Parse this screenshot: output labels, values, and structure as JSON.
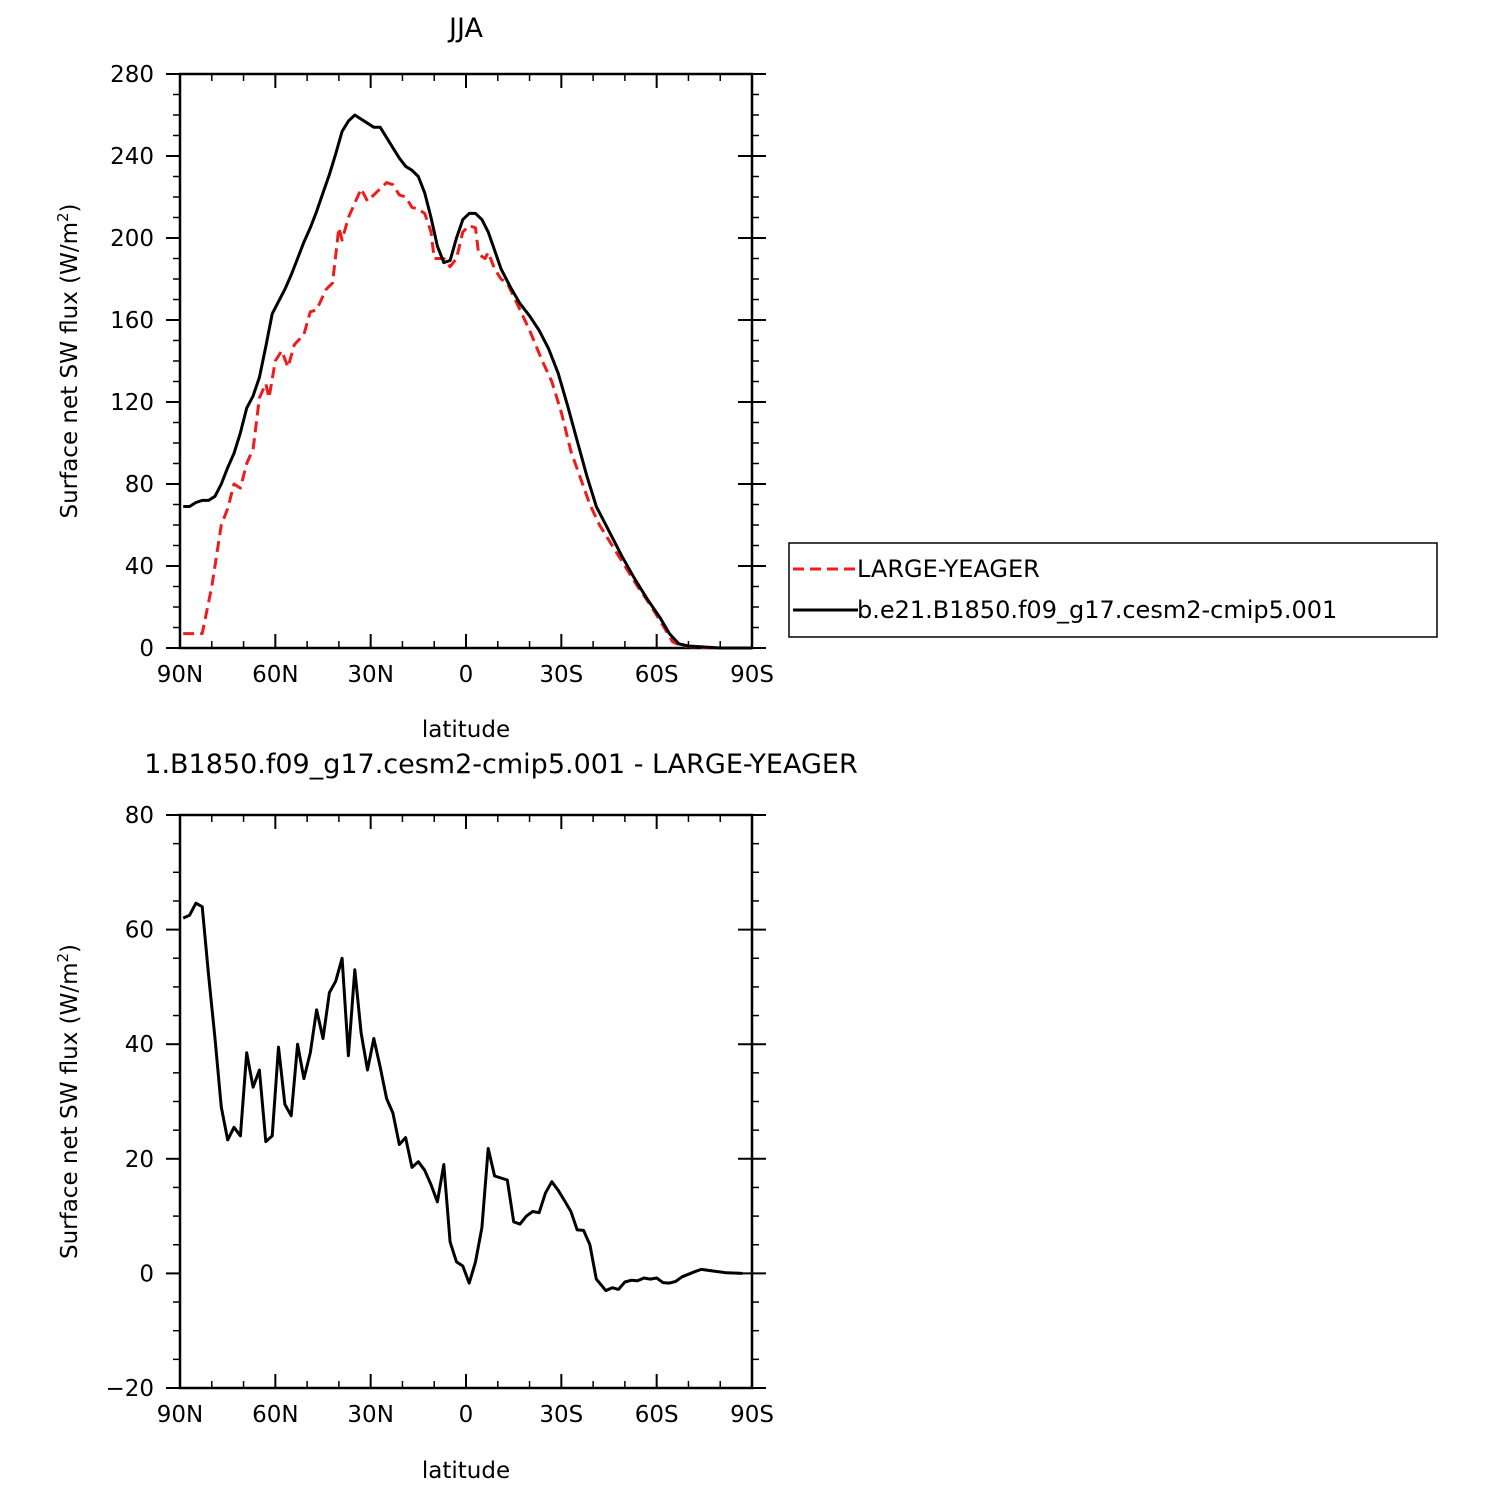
{
  "chart_data": [
    {
      "type": "line",
      "title": "JJA",
      "xlabel": "latitude",
      "ylabel": "Surface net SW flux (W/m²)",
      "xlim": [
        90,
        -90
      ],
      "ylim": [
        0,
        280
      ],
      "xticks": [
        90,
        60,
        30,
        0,
        -30,
        -60,
        -90
      ],
      "xtick_labels": [
        "90N",
        "60N",
        "30N",
        "0",
        "30S",
        "60S",
        "90S"
      ],
      "yticks": [
        0,
        40,
        80,
        120,
        160,
        200,
        240,
        280
      ],
      "ytick_labels": [
        "0",
        "40",
        "80",
        "120",
        "160",
        "200",
        "240",
        "280"
      ],
      "legend_position": "right",
      "series": [
        {
          "name": "LARGE-YEAGER",
          "color": "#ee1c1c",
          "style": "dashed",
          "points": [
            [
              89,
              7
            ],
            [
              86,
              7
            ],
            [
              83,
              7
            ],
            [
              80,
              30
            ],
            [
              77,
              60
            ],
            [
              75,
              68
            ],
            [
              73,
              80
            ],
            [
              71,
              78
            ],
            [
              69,
              90
            ],
            [
              67,
              97
            ],
            [
              65,
              122
            ],
            [
              63,
              129
            ],
            [
              62,
              122
            ],
            [
              60,
              140
            ],
            [
              58,
              145
            ],
            [
              56,
              137
            ],
            [
              54,
              148
            ],
            [
              51,
              153
            ],
            [
              49,
              164
            ],
            [
              47,
              165
            ],
            [
              44,
              175
            ],
            [
              42,
              178
            ],
            [
              40,
              205
            ],
            [
              39,
              199
            ],
            [
              37,
              210
            ],
            [
              35,
              217
            ],
            [
              33,
              224
            ],
            [
              31,
              218
            ],
            [
              29,
              221
            ],
            [
              27,
              224
            ],
            [
              25,
              227
            ],
            [
              23,
              226
            ],
            [
              21,
              221
            ],
            [
              19,
              220
            ],
            [
              17,
              215
            ],
            [
              15,
              214
            ],
            [
              13,
              212
            ],
            [
              11,
              203
            ],
            [
              10,
              190
            ],
            [
              7,
              190
            ],
            [
              5,
              186
            ],
            [
              3,
              190
            ],
            [
              1,
              203
            ],
            [
              -1,
              206
            ],
            [
              -3,
              205
            ],
            [
              -4,
              192
            ],
            [
              -6,
              190
            ],
            [
              -7,
              193
            ],
            [
              -9,
              185
            ],
            [
              -11,
              180
            ],
            [
              -13,
              178
            ],
            [
              -17,
              165
            ],
            [
              -20,
              155
            ],
            [
              -24,
              140
            ],
            [
              -27,
              130
            ],
            [
              -30,
              115
            ],
            [
              -33,
              96
            ],
            [
              -36,
              83
            ],
            [
              -39,
              70
            ],
            [
              -42,
              60
            ],
            [
              -46,
              50
            ],
            [
              -50,
              40
            ],
            [
              -54,
              30
            ],
            [
              -58,
              21
            ],
            [
              -62,
              11
            ],
            [
              -65,
              3
            ],
            [
              -68,
              1
            ],
            [
              -72,
              0.5
            ],
            [
              -78,
              0
            ],
            [
              -86,
              0
            ],
            [
              -90,
              0
            ]
          ]
        },
        {
          "name": "b.e21.B1850.f09_g17.cesm2-cmip5.001",
          "color": "#000000",
          "style": "solid",
          "points": [
            [
              89,
              69
            ],
            [
              87,
              69
            ],
            [
              85,
              71
            ],
            [
              83,
              72
            ],
            [
              81,
              72
            ],
            [
              79,
              74
            ],
            [
              77,
              80
            ],
            [
              75,
              88
            ],
            [
              73,
              95
            ],
            [
              71,
              105
            ],
            [
              69,
              117
            ],
            [
              67,
              123
            ],
            [
              65,
              132
            ],
            [
              63,
              147
            ],
            [
              61,
              163
            ],
            [
              59,
              169
            ],
            [
              57,
              175
            ],
            [
              55,
              182
            ],
            [
              53,
              190
            ],
            [
              51,
              198
            ],
            [
              49,
              205
            ],
            [
              47,
              213
            ],
            [
              45,
              222
            ],
            [
              43,
              231
            ],
            [
              41,
              241
            ],
            [
              39,
              252
            ],
            [
              37,
              257
            ],
            [
              35,
              260
            ],
            [
              33,
              258
            ],
            [
              31,
              256
            ],
            [
              29,
              254
            ],
            [
              27,
              254
            ],
            [
              25,
              249
            ],
            [
              23,
              244
            ],
            [
              21,
              239
            ],
            [
              19,
              235
            ],
            [
              17,
              233
            ],
            [
              15,
              230
            ],
            [
              13,
              222
            ],
            [
              11,
              210
            ],
            [
              9,
              196
            ],
            [
              7,
              188
            ],
            [
              5,
              189
            ],
            [
              3,
              200
            ],
            [
              1,
              209
            ],
            [
              -1,
              212
            ],
            [
              -3,
              212
            ],
            [
              -5,
              209
            ],
            [
              -7,
              203
            ],
            [
              -9,
              194
            ],
            [
              -11,
              185
            ],
            [
              -14,
              176
            ],
            [
              -17,
              168
            ],
            [
              -20,
              162
            ],
            [
              -23,
              155
            ],
            [
              -26,
              146
            ],
            [
              -29,
              134
            ],
            [
              -32,
              118
            ],
            [
              -35,
              101
            ],
            [
              -38,
              84
            ],
            [
              -41,
              69
            ],
            [
              -45,
              57
            ],
            [
              -49,
              45
            ],
            [
              -53,
              34
            ],
            [
              -57,
              24
            ],
            [
              -61,
              15
            ],
            [
              -64,
              7
            ],
            [
              -67,
              2
            ],
            [
              -70,
              1
            ],
            [
              -75,
              0.5
            ],
            [
              -80,
              0
            ],
            [
              -90,
              0
            ]
          ]
        }
      ]
    },
    {
      "type": "line",
      "title": "1.B1850.f09_g17.cesm2-cmip5.001 - LARGE-YEAGER",
      "xlabel": "latitude",
      "ylabel": "Surface net SW flux (W/m²)",
      "xlim": [
        90,
        -90
      ],
      "ylim": [
        -20,
        80
      ],
      "xticks": [
        90,
        60,
        30,
        0,
        -30,
        -60,
        -90
      ],
      "xtick_labels": [
        "90N",
        "60N",
        "30N",
        "0",
        "30S",
        "60S",
        "90S"
      ],
      "yticks": [
        -20,
        0,
        20,
        40,
        60,
        80
      ],
      "ytick_labels": [
        "−20",
        "0",
        "20",
        "40",
        "60",
        "80"
      ],
      "series": [
        {
          "color": "#000000",
          "style": "solid",
          "points": [
            [
              89,
              62
            ],
            [
              87,
              62.5
            ],
            [
              85,
              64.6
            ],
            [
              83,
              64
            ],
            [
              81,
              52
            ],
            [
              79,
              41
            ],
            [
              77,
              29
            ],
            [
              75,
              23.3
            ],
            [
              73,
              25.5
            ],
            [
              71,
              24
            ],
            [
              69,
              38.5
            ],
            [
              67,
              32.5
            ],
            [
              65,
              35.5
            ],
            [
              63,
              23
            ],
            [
              61,
              24
            ],
            [
              59,
              39.5
            ],
            [
              57,
              29.5
            ],
            [
              55,
              27.5
            ],
            [
              53,
              40
            ],
            [
              51,
              34
            ],
            [
              49,
              38.5
            ],
            [
              47,
              46
            ],
            [
              45,
              41
            ],
            [
              43,
              49
            ],
            [
              41,
              51
            ],
            [
              39,
              55
            ],
            [
              37,
              38
            ],
            [
              35,
              53
            ],
            [
              33,
              42
            ],
            [
              31,
              35.5
            ],
            [
              29,
              41
            ],
            [
              27,
              36
            ],
            [
              25,
              30.5
            ],
            [
              23,
              28
            ],
            [
              21,
              22.5
            ],
            [
              19,
              23.7
            ],
            [
              17,
              18.5
            ],
            [
              15,
              19.5
            ],
            [
              13,
              18
            ],
            [
              11,
              15.5
            ],
            [
              9,
              12.5
            ],
            [
              7,
              19
            ],
            [
              5,
              5.5
            ],
            [
              3,
              2
            ],
            [
              1,
              1.3
            ],
            [
              -1,
              -1.7
            ],
            [
              -3,
              2
            ],
            [
              -5,
              8
            ],
            [
              -7,
              21.8
            ],
            [
              -9,
              17
            ],
            [
              -13,
              16.3
            ],
            [
              -15,
              9
            ],
            [
              -17,
              8.6
            ],
            [
              -19,
              10
            ],
            [
              -21,
              10.8
            ],
            [
              -23,
              10.6
            ],
            [
              -25,
              14
            ],
            [
              -27,
              16
            ],
            [
              -29,
              14.5
            ],
            [
              -31,
              12.7
            ],
            [
              -33,
              10.8
            ],
            [
              -35,
              7.6
            ],
            [
              -37,
              7.5
            ],
            [
              -39,
              5
            ],
            [
              -41,
              -1
            ],
            [
              -44,
              -3
            ],
            [
              -46,
              -2.5
            ],
            [
              -48,
              -2.8
            ],
            [
              -50,
              -1.5
            ],
            [
              -52,
              -1.2
            ],
            [
              -54,
              -1.3
            ],
            [
              -56,
              -0.8
            ],
            [
              -58,
              -1
            ],
            [
              -60,
              -0.8
            ],
            [
              -62,
              -1.6
            ],
            [
              -64,
              -1.7
            ],
            [
              -66,
              -1.4
            ],
            [
              -68,
              -0.6
            ],
            [
              -72,
              0.3
            ],
            [
              -74,
              0.7
            ],
            [
              -78,
              0.4
            ],
            [
              -82,
              0.1
            ],
            [
              -87,
              0
            ]
          ]
        }
      ]
    }
  ]
}
